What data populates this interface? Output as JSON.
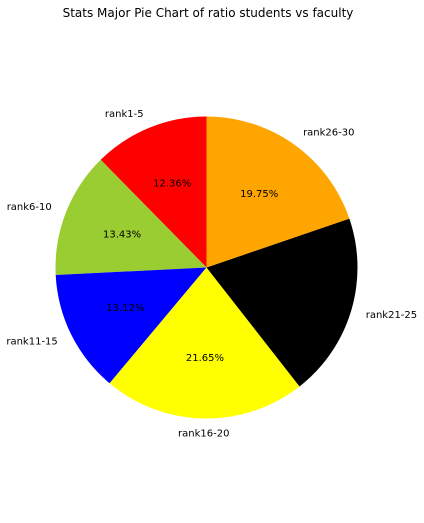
{
  "chart_data": {
    "type": "pie",
    "title": "Stats Major Pie Chart of ratio students vs faculty",
    "start_angle_deg": 90,
    "direction": "counterclockwise",
    "slices": [
      {
        "label": "rank1-5",
        "percent": 12.36,
        "percent_label": "12.36%",
        "color": "#ff0000"
      },
      {
        "label": "rank6-10",
        "percent": 13.43,
        "percent_label": "13.43%",
        "color": "#9acd32"
      },
      {
        "label": "rank11-15",
        "percent": 13.12,
        "percent_label": "13.12%",
        "color": "#0000ff"
      },
      {
        "label": "rank16-20",
        "percent": 21.65,
        "percent_label": "21.65%",
        "color": "#ffff00"
      },
      {
        "label": "rank21-25",
        "percent": 19.69,
        "percent_label": "",
        "color": "#000000"
      },
      {
        "label": "rank26-30",
        "percent": 19.75,
        "percent_label": "19.75%",
        "color": "#ffa500"
      }
    ]
  }
}
